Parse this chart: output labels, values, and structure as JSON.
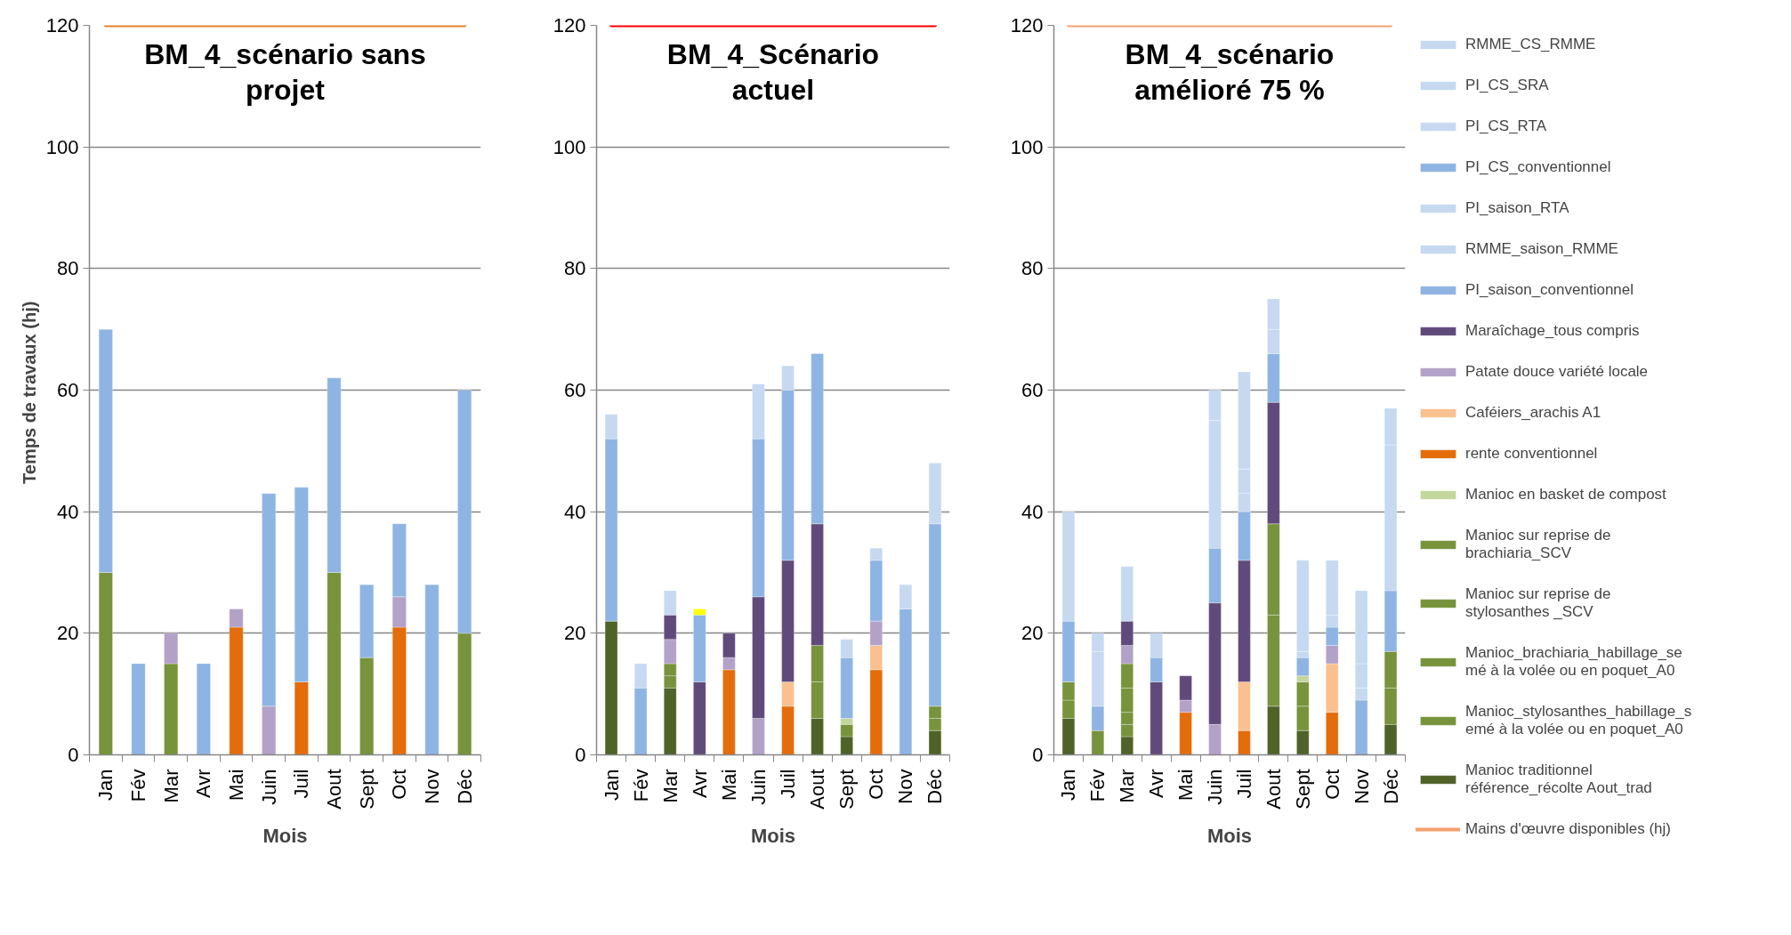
{
  "chart_data": [
    {
      "type": "bar",
      "stacked": true,
      "title": "BM_4_scénario sans projet",
      "xlabel": "Mois",
      "ylabel": "Temps  de travaux (hj)",
      "categories": [
        "Jan",
        "Fév",
        "Mar",
        "Avr",
        "Mai",
        "Juin",
        "Juil",
        "Aout",
        "Sept",
        "Oct",
        "Nov",
        "Déc"
      ],
      "ylim": [
        0,
        120
      ],
      "yticks": [
        0,
        20,
        40,
        60,
        80,
        100,
        120
      ],
      "grid": "y",
      "series": [
        {
          "color": "#77933c",
          "values": [
            30,
            null,
            15,
            null,
            null,
            null,
            null,
            30,
            16,
            null,
            null,
            20
          ]
        },
        {
          "color": "#e46c0a",
          "values": [
            null,
            null,
            null,
            null,
            21,
            null,
            12,
            null,
            null,
            21,
            null,
            null
          ]
        },
        {
          "color": "#b3a2c7",
          "values": [
            null,
            null,
            5,
            null,
            3,
            8,
            null,
            null,
            null,
            5,
            null,
            null
          ]
        },
        {
          "color": "#8eb4e3",
          "values": [
            40,
            15,
            null,
            15,
            null,
            35,
            32,
            32,
            12,
            12,
            28,
            40
          ]
        },
        {
          "type": "line",
          "color": "#e3812f",
          "values": [
            120,
            120,
            120,
            120,
            120,
            120,
            120,
            120,
            120,
            120,
            120,
            120
          ]
        }
      ]
    },
    {
      "type": "bar",
      "stacked": true,
      "title": "BM_4_Scénario actuel",
      "xlabel": "Mois",
      "categories": [
        "Jan",
        "Fév",
        "Mar",
        "Avr",
        "Mai",
        "Juin",
        "Juil",
        "Aout",
        "Sept",
        "Oct",
        "Nov",
        "Déc"
      ],
      "ylim": [
        0,
        120
      ],
      "yticks": [
        0,
        20,
        40,
        60,
        80,
        100,
        120
      ],
      "grid": "y",
      "series": [
        {
          "color": "#4f6228",
          "values": [
            22,
            null,
            11,
            null,
            null,
            null,
            null,
            6,
            3,
            null,
            null,
            4
          ]
        },
        {
          "color": "#77933c",
          "values": [
            null,
            null,
            2,
            null,
            null,
            null,
            null,
            6,
            2,
            null,
            null,
            2
          ]
        },
        {
          "color": "#77933c",
          "values": [
            null,
            null,
            2,
            null,
            null,
            null,
            null,
            6,
            null,
            null,
            null,
            2
          ]
        },
        {
          "color": "#c3d69b",
          "values": [
            null,
            null,
            null,
            null,
            null,
            null,
            null,
            null,
            1,
            null,
            null,
            null
          ]
        },
        {
          "color": "#e46c0a",
          "values": [
            null,
            null,
            null,
            null,
            14,
            null,
            8,
            null,
            null,
            14,
            null,
            null
          ]
        },
        {
          "color": "#fac090",
          "values": [
            null,
            null,
            null,
            null,
            null,
            null,
            4,
            null,
            null,
            4,
            null,
            null
          ]
        },
        {
          "color": "#b3a2c7",
          "values": [
            null,
            null,
            4,
            null,
            2,
            6,
            null,
            null,
            null,
            4,
            null,
            null
          ]
        },
        {
          "color": "#604a7b",
          "values": [
            null,
            null,
            4,
            12,
            4,
            20,
            20,
            20,
            null,
            null,
            null,
            null
          ]
        },
        {
          "color": "#8eb4e3",
          "values": [
            30,
            11,
            null,
            11,
            null,
            26,
            28,
            28,
            10,
            10,
            24,
            30
          ]
        },
        {
          "color": "#c6d9f1",
          "values": [
            4,
            4,
            4,
            null,
            null,
            9,
            4,
            null,
            3,
            2,
            4,
            10
          ]
        },
        {
          "color": "#ffff00",
          "values": [
            null,
            null,
            null,
            1,
            null,
            null,
            null,
            null,
            null,
            null,
            null,
            null
          ]
        },
        {
          "type": "line",
          "color": "#ff0000",
          "values": [
            120,
            120,
            120,
            120,
            120,
            120,
            120,
            120,
            120,
            120,
            120,
            120
          ]
        }
      ]
    },
    {
      "type": "bar",
      "stacked": true,
      "title": "BM_4_scénario amélioré 75 %",
      "xlabel": "Mois",
      "categories": [
        "Jan",
        "Fév",
        "Mar",
        "Avr",
        "Mai",
        "Juin",
        "Juil",
        "Aout",
        "Sept",
        "Oct",
        "Nov",
        "Déc"
      ],
      "ylim": [
        0,
        120
      ],
      "yticks": [
        0,
        20,
        40,
        60,
        80,
        100,
        120
      ],
      "grid": "y",
      "legend": "right",
      "series": [
        {
          "name": "Manioc traditionnel référence_récolte Aout_trad",
          "color": "#4f6228",
          "values": [
            6,
            null,
            3,
            null,
            null,
            null,
            null,
            8,
            4,
            null,
            null,
            5
          ]
        },
        {
          "name": "Manioc_stylosanthes_habillage_semé à la volée ou en poquet_A0",
          "color": "#77933c",
          "values": [
            3,
            4,
            2,
            null,
            null,
            null,
            null,
            15,
            4,
            null,
            null,
            6
          ]
        },
        {
          "name": "Manioc_brachiaria_habillage_semé à la volée ou en poquet_A0",
          "color": "#77933c",
          "values": [
            3,
            null,
            2,
            null,
            null,
            null,
            null,
            15,
            4,
            null,
            null,
            6
          ]
        },
        {
          "name": "Manioc sur reprise de stylosanthes _SCV",
          "color": "#77933c",
          "values": [
            null,
            null,
            4,
            null,
            null,
            null,
            null,
            null,
            null,
            null,
            null,
            null
          ]
        },
        {
          "name": "Manioc sur reprise de brachiaria_SCV",
          "color": "#77933c",
          "values": [
            null,
            null,
            4,
            null,
            null,
            null,
            null,
            null,
            null,
            null,
            null,
            null
          ]
        },
        {
          "name": "Manioc en basket de compost",
          "color": "#c3d69b",
          "values": [
            null,
            null,
            null,
            null,
            null,
            null,
            null,
            null,
            1,
            null,
            null,
            null
          ]
        },
        {
          "name": "rente conventionnel",
          "color": "#e46c0a",
          "values": [
            null,
            null,
            null,
            null,
            7,
            null,
            4,
            null,
            null,
            7,
            null,
            null
          ]
        },
        {
          "name": "Caféiers_arachis A1",
          "color": "#fac090",
          "values": [
            null,
            null,
            null,
            null,
            null,
            null,
            8,
            null,
            null,
            8,
            null,
            null
          ]
        },
        {
          "name": "Patate douce variété locale",
          "color": "#b3a2c7",
          "values": [
            null,
            null,
            3,
            null,
            2,
            5,
            null,
            null,
            null,
            3,
            null,
            null
          ]
        },
        {
          "name": "Maraîchage_tous compris",
          "color": "#604a7b",
          "values": [
            null,
            null,
            4,
            12,
            4,
            20,
            20,
            20,
            null,
            null,
            null,
            null
          ]
        },
        {
          "name": "PI_saison_conventionnel",
          "color": "#8eb4e3",
          "values": [
            10,
            4,
            null,
            4,
            null,
            9,
            8,
            8,
            3,
            3,
            9,
            10
          ]
        },
        {
          "name": "RMME_saison_RMME",
          "color": "#c6d9f1",
          "values": [
            18,
            9,
            9,
            4,
            null,
            21,
            3,
            4,
            1,
            2,
            2,
            24
          ]
        },
        {
          "name": "PI_saison_RTA",
          "color": "#c6d9f1",
          "values": [
            null,
            3,
            null,
            null,
            null,
            5,
            4,
            5,
            15,
            9,
            4,
            6
          ]
        },
        {
          "name": "PI_CS_conventionnel",
          "color": "#8eb4e3",
          "values": [
            null,
            null,
            null,
            null,
            null,
            null,
            null,
            null,
            null,
            null,
            null,
            null
          ]
        },
        {
          "name": "PI_CS_RTA",
          "color": "#c6d9f1",
          "values": [
            null,
            null,
            null,
            null,
            null,
            null,
            16,
            null,
            null,
            null,
            12,
            null
          ]
        },
        {
          "name": "PI_CS_SRA",
          "color": "#c6d9f1",
          "values": [
            null,
            null,
            null,
            null,
            null,
            null,
            null,
            null,
            null,
            null,
            null,
            null
          ]
        },
        {
          "name": "RMME_CS_RMME",
          "color": "#c6d9f1",
          "values": [
            null,
            null,
            null,
            null,
            null,
            null,
            null,
            null,
            null,
            null,
            null,
            null
          ]
        },
        {
          "type": "line",
          "name": "Mains d'œuvre disponibles (hj)",
          "color": "#f7a06c",
          "values": [
            120,
            120,
            120,
            120,
            120,
            120,
            120,
            120,
            120,
            120,
            120,
            120
          ]
        }
      ]
    }
  ]
}
